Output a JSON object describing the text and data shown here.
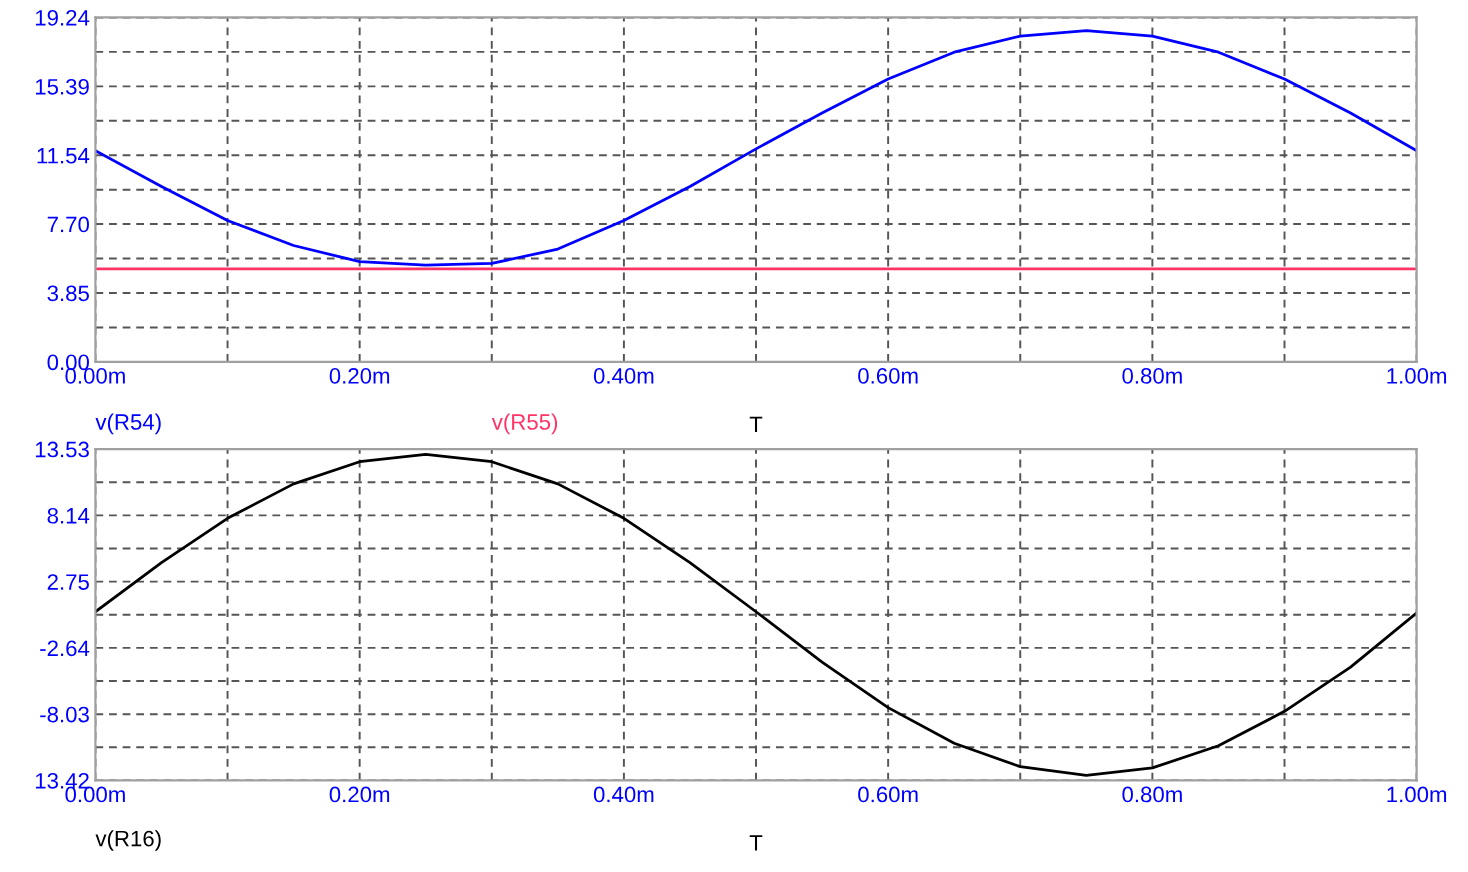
{
  "chart_data": [
    {
      "type": "line",
      "xlabel": "T",
      "x": [
        0,
        0.05,
        0.1,
        0.15,
        0.2,
        0.25,
        0.3,
        0.35,
        0.4,
        0.45,
        0.5,
        0.55,
        0.6,
        0.65,
        0.7,
        0.75,
        0.8,
        0.85,
        0.9,
        0.95,
        1.0
      ],
      "series": [
        {
          "name": "v(R54)",
          "color": "#0000ff",
          "values": [
            11.8,
            9.8,
            7.9,
            6.5,
            5.6,
            5.4,
            5.5,
            6.3,
            7.9,
            9.8,
            11.9,
            13.9,
            15.8,
            17.3,
            18.2,
            18.5,
            18.2,
            17.3,
            15.8,
            13.9,
            11.8
          ]
        },
        {
          "name": "v(R55)",
          "color": "#ff3366",
          "values": [
            5.2,
            5.2,
            5.2,
            5.2,
            5.2,
            5.2,
            5.2,
            5.2,
            5.2,
            5.2,
            5.2,
            5.2,
            5.2,
            5.2,
            5.2,
            5.2,
            5.2,
            5.2,
            5.2,
            5.2,
            5.2
          ]
        }
      ],
      "xlim": [
        0,
        1.0
      ],
      "xticks": [
        {
          "value": 0,
          "label": "0.00m"
        },
        {
          "value": 0.1,
          "label": null
        },
        {
          "value": 0.2,
          "label": "0.20m"
        },
        {
          "value": 0.3,
          "label": null
        },
        {
          "value": 0.4,
          "label": "0.40m"
        },
        {
          "value": 0.5,
          "label": null
        },
        {
          "value": 0.6,
          "label": "0.60m"
        },
        {
          "value": 0.7,
          "label": null
        },
        {
          "value": 0.8,
          "label": "0.80m"
        },
        {
          "value": 0.9,
          "label": null
        },
        {
          "value": 1.0,
          "label": "1.00m"
        }
      ],
      "ylim": [
        0,
        19.24
      ],
      "yticks": [
        {
          "value": 0,
          "label": "0.00"
        },
        {
          "value": 1.925,
          "label": null
        },
        {
          "value": 3.85,
          "label": "3.85"
        },
        {
          "value": 5.775,
          "label": null
        },
        {
          "value": 7.7,
          "label": "7.70"
        },
        {
          "value": 9.62,
          "label": null
        },
        {
          "value": 11.54,
          "label": "11.54"
        },
        {
          "value": 13.465,
          "label": null
        },
        {
          "value": 15.39,
          "label": "15.39"
        },
        {
          "value": 17.315,
          "label": null
        },
        {
          "value": 19.24,
          "label": "19.24"
        }
      ],
      "grid": true,
      "legend": "bottom left",
      "line_style": "solid",
      "marker": "none"
    },
    {
      "type": "line",
      "xlabel": "T",
      "x": [
        0,
        0.05,
        0.1,
        0.15,
        0.2,
        0.25,
        0.3,
        0.35,
        0.4,
        0.45,
        0.5,
        0.55,
        0.6,
        0.65,
        0.7,
        0.75,
        0.8,
        0.85,
        0.9,
        0.95,
        1.0
      ],
      "series": [
        {
          "name": "v(R16)",
          "color": "#000000",
          "values": [
            0.3,
            4.3,
            7.9,
            10.7,
            12.5,
            13.1,
            12.5,
            10.7,
            7.9,
            4.3,
            0.3,
            -3.8,
            -7.5,
            -10.4,
            -12.3,
            -13.0,
            -12.4,
            -10.6,
            -7.8,
            -4.2,
            0.2
          ]
        }
      ],
      "xlim": [
        0,
        1.0
      ],
      "xticks": [
        {
          "value": 0,
          "label": "0.00m"
        },
        {
          "value": 0.1,
          "label": null
        },
        {
          "value": 0.2,
          "label": "0.20m"
        },
        {
          "value": 0.3,
          "label": null
        },
        {
          "value": 0.4,
          "label": "0.40m"
        },
        {
          "value": 0.5,
          "label": null
        },
        {
          "value": 0.6,
          "label": "0.60m"
        },
        {
          "value": 0.7,
          "label": null
        },
        {
          "value": 0.8,
          "label": "0.80m"
        },
        {
          "value": 0.9,
          "label": null
        },
        {
          "value": 1.0,
          "label": "1.00m"
        }
      ],
      "ylim": [
        -13.42,
        13.53
      ],
      "yticks": [
        {
          "value": -13.42,
          "label": "13.42"
        },
        {
          "value": -10.725,
          "label": null
        },
        {
          "value": -8.03,
          "label": "-8.03"
        },
        {
          "value": -5.335,
          "label": null
        },
        {
          "value": -2.64,
          "label": "-2.64"
        },
        {
          "value": 0.055,
          "label": null
        },
        {
          "value": 2.75,
          "label": "2.75"
        },
        {
          "value": 5.445,
          "label": null
        },
        {
          "value": 8.14,
          "label": "8.14"
        },
        {
          "value": 10.835,
          "label": null
        },
        {
          "value": 13.53,
          "label": "13.53"
        }
      ],
      "grid": true,
      "legend": "bottom left",
      "line_style": "solid",
      "marker": "none"
    }
  ]
}
